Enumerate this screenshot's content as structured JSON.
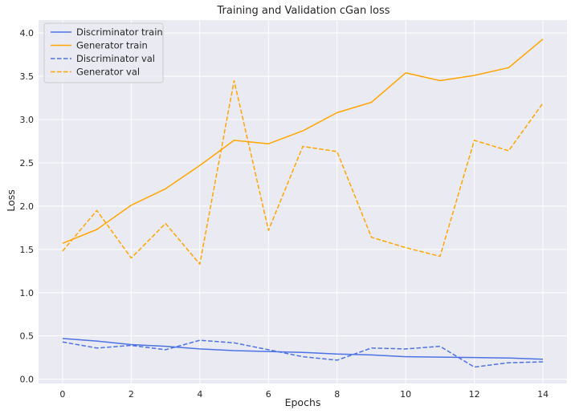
{
  "chart_data": {
    "type": "line",
    "title": "Training and Validation cGan loss",
    "xlabel": "Epochs",
    "ylabel": "Loss",
    "x": [
      0,
      1,
      2,
      3,
      4,
      5,
      6,
      7,
      8,
      9,
      10,
      11,
      12,
      13,
      14
    ],
    "xlim": [
      -0.7,
      14.7
    ],
    "ylim": [
      -0.05,
      4.15
    ],
    "xticks": [
      0,
      2,
      4,
      6,
      8,
      10,
      12,
      14
    ],
    "yticks": [
      0.0,
      0.5,
      1.0,
      1.5,
      2.0,
      2.5,
      3.0,
      3.5,
      4.0
    ],
    "xtick_labels": [
      "0",
      "2",
      "4",
      "6",
      "8",
      "10",
      "12",
      "14"
    ],
    "ytick_labels": [
      "0.0",
      "0.5",
      "1.0",
      "1.5",
      "2.0",
      "2.5",
      "3.0",
      "3.5",
      "4.0"
    ],
    "grid": true,
    "legend_position": "top-left",
    "background_color": "#eaeaf2",
    "series": [
      {
        "name": "Discriminator train",
        "color": "#4c72e6",
        "dashed": false,
        "values": [
          0.47,
          0.44,
          0.4,
          0.38,
          0.35,
          0.33,
          0.32,
          0.31,
          0.29,
          0.28,
          0.26,
          0.255,
          0.25,
          0.245,
          0.23
        ]
      },
      {
        "name": "Generator train",
        "color": "#ffa500",
        "dashed": false,
        "values": [
          1.57,
          1.73,
          2.01,
          2.2,
          2.47,
          2.76,
          2.72,
          2.87,
          3.08,
          3.2,
          3.54,
          3.45,
          3.51,
          3.6,
          3.93
        ]
      },
      {
        "name": "Discriminator val",
        "color": "#4c72e6",
        "dashed": true,
        "values": [
          0.43,
          0.36,
          0.39,
          0.34,
          0.45,
          0.42,
          0.34,
          0.26,
          0.22,
          0.36,
          0.35,
          0.38,
          0.14,
          0.19,
          0.2
        ]
      },
      {
        "name": "Generator val",
        "color": "#ffa500",
        "dashed": true,
        "values": [
          1.48,
          1.95,
          1.4,
          1.8,
          1.33,
          3.45,
          1.72,
          2.69,
          2.63,
          1.64,
          1.52,
          1.42,
          2.76,
          2.64,
          3.19
        ]
      }
    ]
  }
}
